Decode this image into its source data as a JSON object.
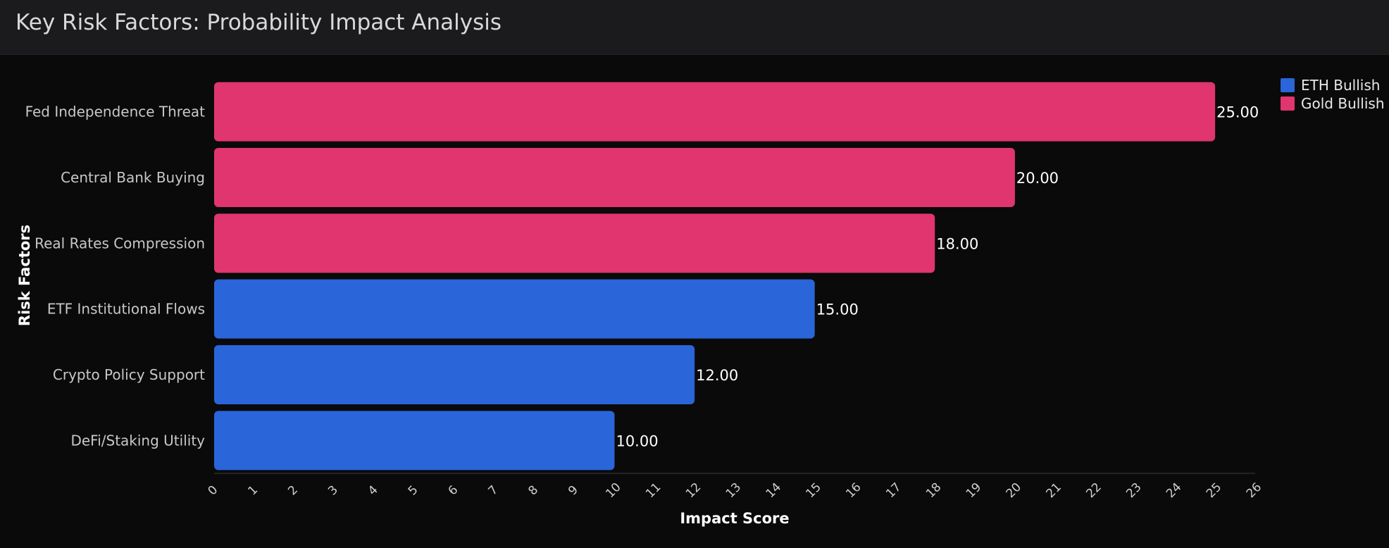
{
  "header": {
    "title": "Key Risk Factors: Probability Impact Analysis"
  },
  "legend": {
    "items": [
      {
        "label": "ETH Bullish",
        "color": "#2a65d9"
      },
      {
        "label": "Gold Bullish",
        "color": "#e0356f"
      }
    ]
  },
  "chart_data": {
    "type": "bar",
    "orientation": "horizontal",
    "title": "Key Risk Factors: Probability Impact Analysis",
    "xlabel": "Impact Score",
    "ylabel": "Risk Factors",
    "xlim": [
      0,
      26
    ],
    "x_ticks": [
      0,
      1,
      2,
      3,
      4,
      5,
      6,
      7,
      8,
      9,
      10,
      11,
      12,
      13,
      14,
      15,
      16,
      17,
      18,
      19,
      20,
      21,
      22,
      23,
      24,
      25,
      26
    ],
    "categories": [
      "Fed Independence Threat",
      "Central Bank Buying",
      "Real Rates Compression",
      "ETF Institutional Flows",
      "Crypto Policy Support",
      "DeFi/Staking Utility"
    ],
    "values": [
      25,
      20,
      18,
      15,
      12,
      10
    ],
    "value_labels": [
      "25.00",
      "20.00",
      "18.00",
      "15.00",
      "12.00",
      "10.00"
    ],
    "bar_series": [
      "Gold Bullish",
      "Gold Bullish",
      "Gold Bullish",
      "ETH Bullish",
      "ETH Bullish",
      "ETH Bullish"
    ],
    "series": [
      {
        "name": "ETH Bullish",
        "color": "#2a65d9"
      },
      {
        "name": "Gold Bullish",
        "color": "#e0356f"
      }
    ],
    "grid": false,
    "legend_position": "top-right"
  }
}
